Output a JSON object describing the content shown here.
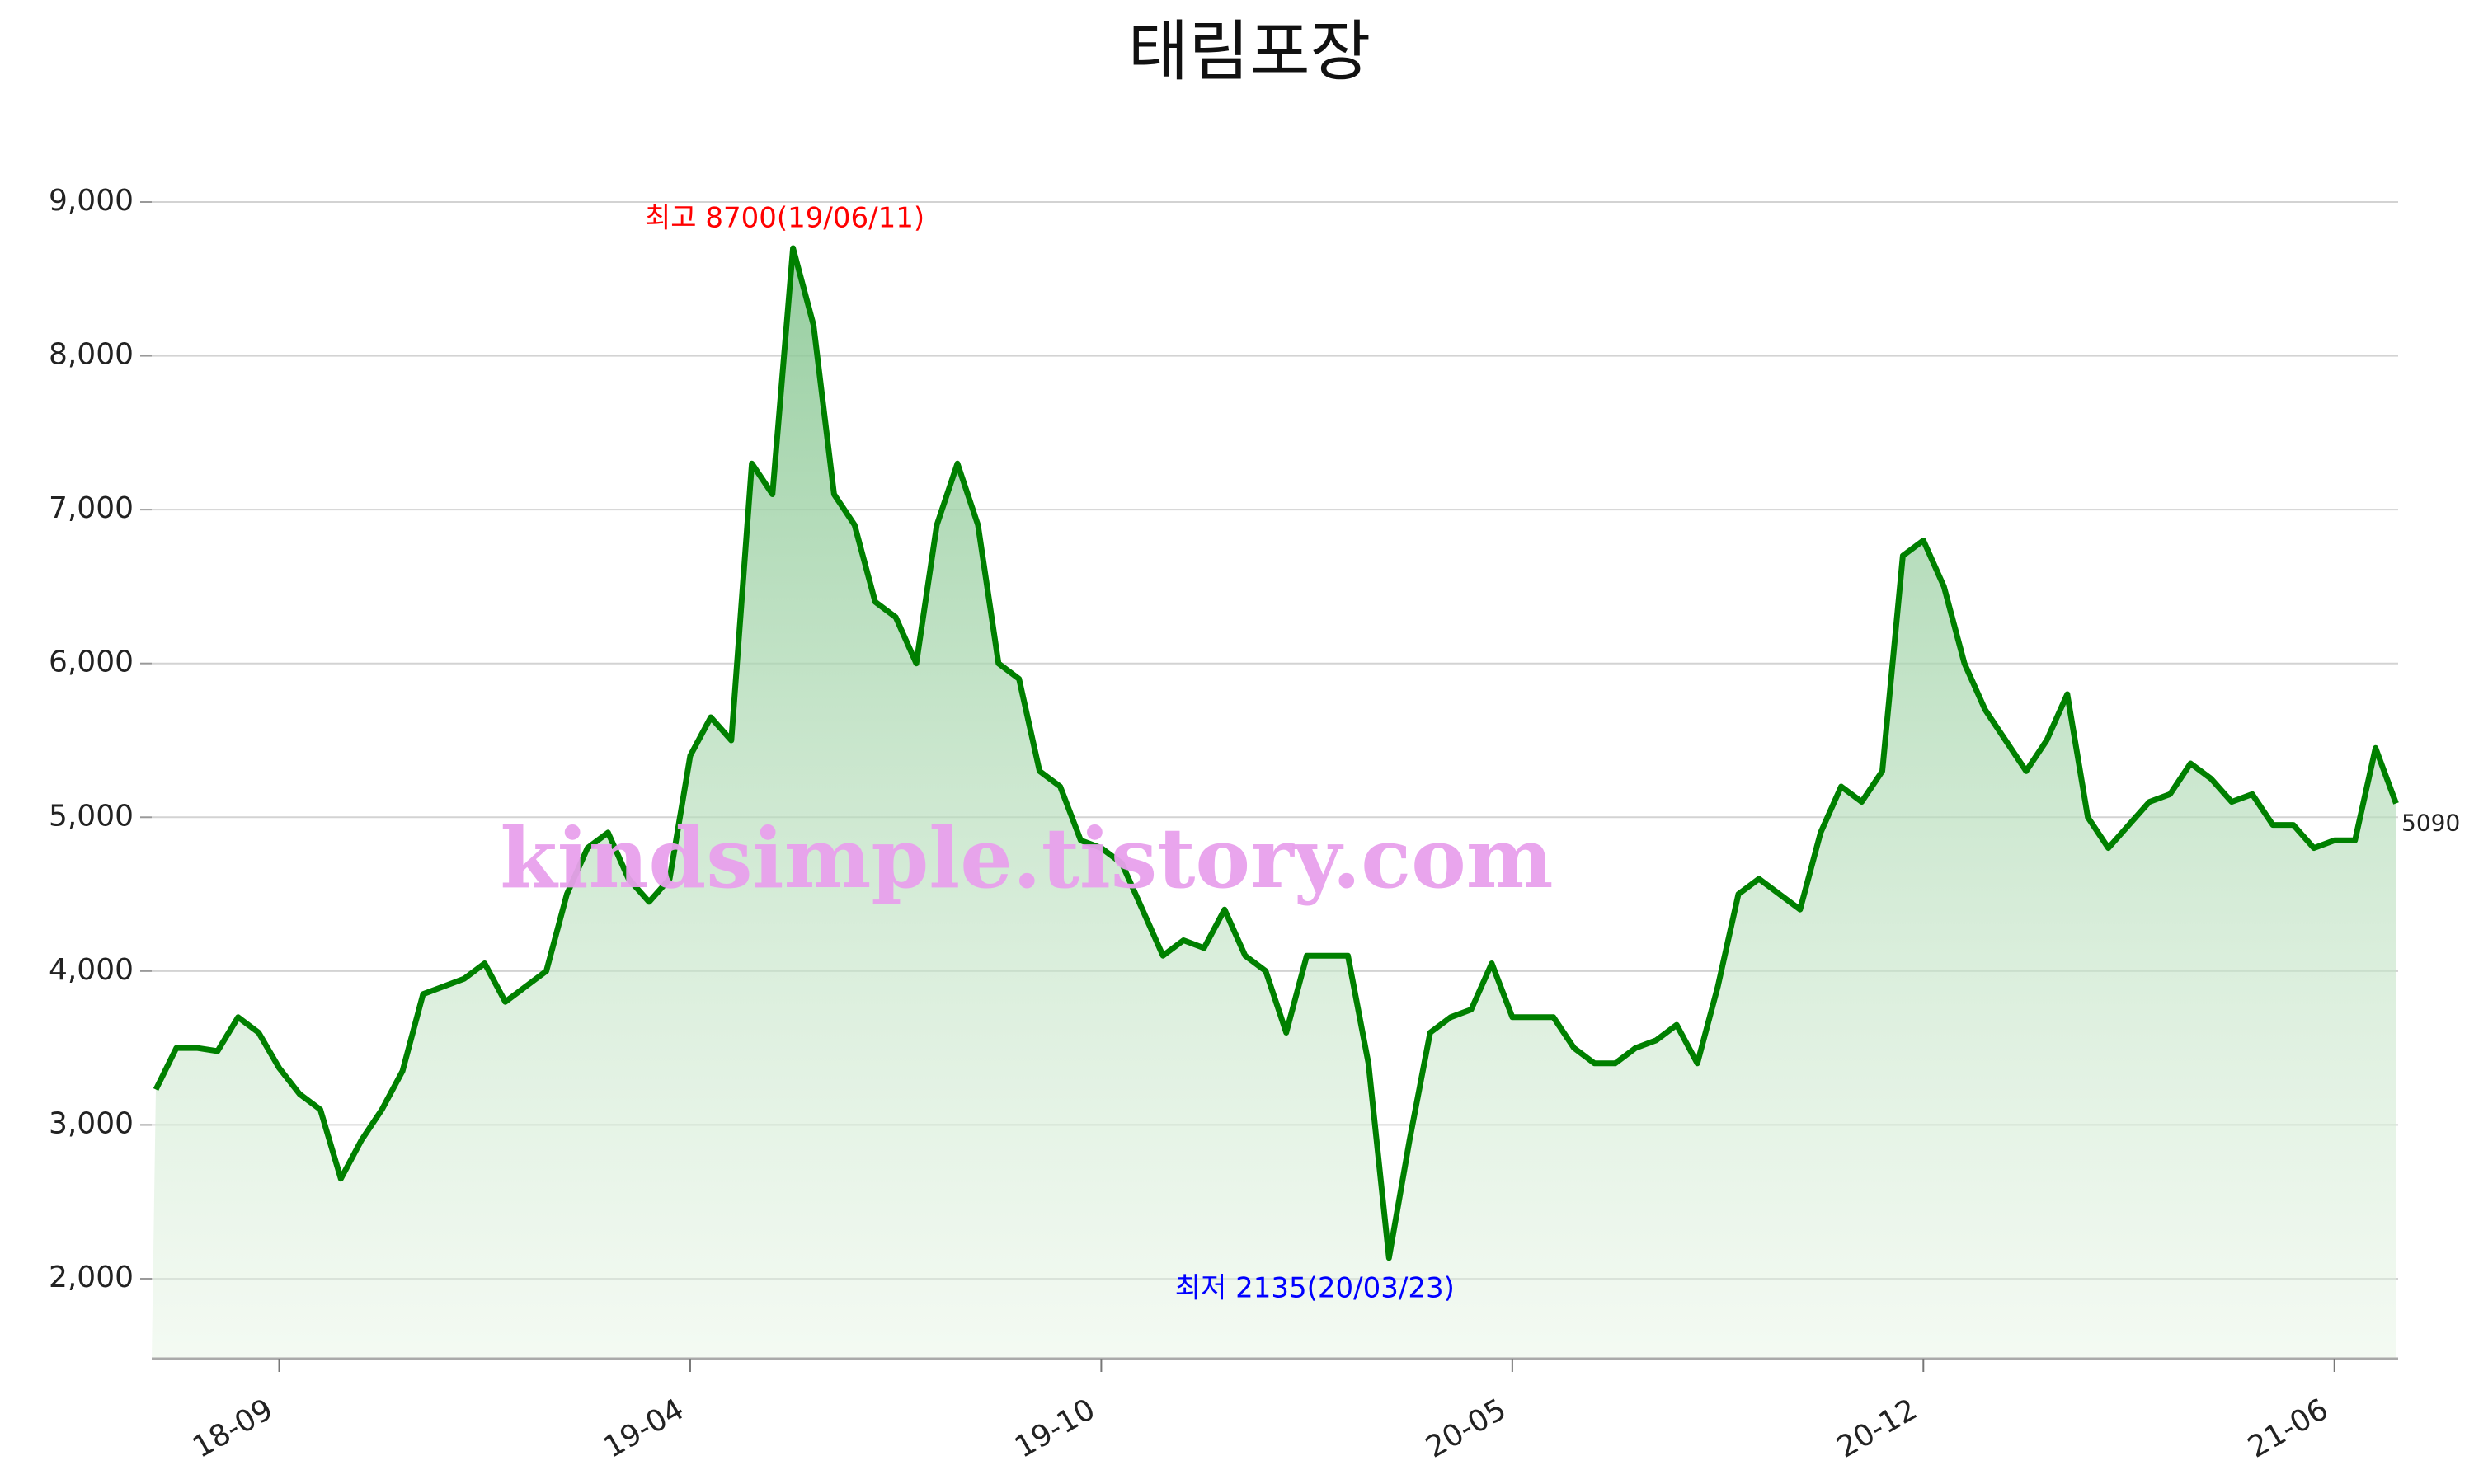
{
  "chart_data": {
    "type": "line",
    "title": "태림포장",
    "watermark": "kindsimple.tistory.com",
    "categories": [
      null,
      null,
      null,
      null,
      null,
      null,
      "18-09",
      null,
      null,
      null,
      null,
      null,
      null,
      null,
      null,
      null,
      null,
      null,
      null,
      null,
      null,
      null,
      null,
      null,
      null,
      null,
      "19-04",
      null,
      null,
      null,
      null,
      null,
      null,
      null,
      null,
      null,
      null,
      null,
      null,
      null,
      null,
      null,
      null,
      null,
      null,
      null,
      "19-10",
      null,
      null,
      null,
      null,
      null,
      null,
      null,
      null,
      null,
      null,
      null,
      null,
      null,
      null,
      null,
      null,
      null,
      null,
      null,
      "20-05",
      null,
      null,
      null,
      null,
      null,
      null,
      null,
      null,
      null,
      null,
      null,
      null,
      null,
      null,
      null,
      null,
      null,
      null,
      null,
      "20-12",
      null,
      null,
      null,
      null,
      null,
      null,
      null,
      null,
      null,
      null,
      null,
      null,
      null,
      null,
      null,
      null,
      null,
      null,
      null,
      "21-06",
      null,
      null,
      null
    ],
    "values": [
      3230,
      3500,
      3500,
      3480,
      3700,
      3600,
      3370,
      3200,
      3100,
      2650,
      2900,
      3100,
      3350,
      3850,
      3900,
      3950,
      4050,
      3800,
      3900,
      4000,
      4500,
      4800,
      4900,
      4600,
      4450,
      4600,
      5400,
      5650,
      5500,
      7300,
      7100,
      8700,
      8200,
      7100,
      6900,
      6400,
      6300,
      6000,
      6900,
      7300,
      6900,
      6000,
      5900,
      5300,
      5200,
      4850,
      4800,
      4700,
      4400,
      4100,
      4200,
      4150,
      4400,
      4100,
      4000,
      3600,
      4100,
      4100,
      4100,
      3400,
      2135,
      2900,
      3600,
      3700,
      3750,
      4050,
      3700,
      3700,
      3700,
      3500,
      3400,
      3400,
      3500,
      3550,
      3650,
      3400,
      3900,
      4500,
      4600,
      4500,
      4400,
      4900,
      5200,
      5100,
      5300,
      6700,
      6800,
      6500,
      6000,
      5700,
      5500,
      5300,
      5500,
      5800,
      5000,
      4800,
      4950,
      5100,
      5150,
      5350,
      5250,
      5100,
      5150,
      4950,
      4950,
      4800,
      4850,
      4850,
      5450,
      5090
    ],
    "color": "#008000",
    "ylim": [
      1480,
      9000
    ],
    "yticks": [
      {
        "value": 2000,
        "label": "2,000"
      },
      {
        "value": 3000,
        "label": "3,000"
      },
      {
        "value": 4000,
        "label": "4,000"
      },
      {
        "value": 5000,
        "label": "5,000"
      },
      {
        "value": 6000,
        "label": "6,000"
      },
      {
        "value": 7000,
        "label": "7,000"
      },
      {
        "value": 8000,
        "label": "8,000"
      },
      {
        "value": 9000,
        "label": "9,000"
      }
    ],
    "grid": true,
    "annotations": [
      {
        "text": "최고 8700(19/06/11)",
        "color": "#ff0000"
      },
      {
        "text": "최저 2135(20/03/23)",
        "color": "#0000ff"
      }
    ]
  }
}
